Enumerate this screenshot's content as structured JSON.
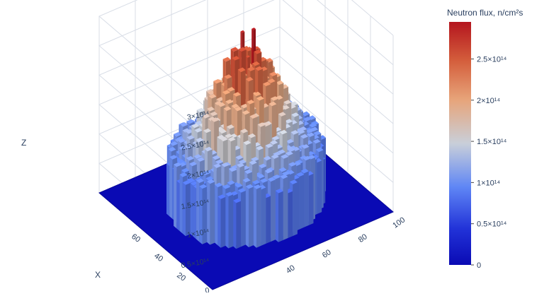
{
  "chart_data": {
    "type": "surface",
    "colorbar": {
      "title": "Neutron flux, n/cm²s",
      "tick_labels": [
        "0",
        "0.5×10¹⁴",
        "1×10¹⁴",
        "1.5×10¹⁴",
        "2×10¹⁴",
        "2.5×10¹⁴"
      ],
      "tick_values": [
        0,
        50000000000000.0,
        100000000000000.0,
        150000000000000.0,
        200000000000000.0,
        250000000000000.0
      ],
      "range": [
        0,
        295000000000000.0
      ],
      "colorscale": [
        [
          0.0,
          "#0a0ab4"
        ],
        [
          0.15,
          "#2233d8"
        ],
        [
          0.32,
          "#5f86f5"
        ],
        [
          0.5,
          "#c9cfd9"
        ],
        [
          0.68,
          "#e7a47a"
        ],
        [
          0.84,
          "#d45e3c"
        ],
        [
          1.0,
          "#b4151e"
        ]
      ]
    },
    "z_axis": {
      "title": "Z",
      "tick_labels": [
        "0",
        "0.5×10¹⁴",
        "1×10¹⁴",
        "1.5×10¹⁴",
        "2×10¹⁴",
        "2.5×10¹⁴",
        "3×10¹⁴"
      ],
      "tick_values": [
        0,
        50000000000000.0,
        100000000000000.0,
        150000000000000.0,
        200000000000000.0,
        250000000000000.0,
        300000000000000.0
      ],
      "range": [
        0,
        300000000000000.0
      ]
    },
    "x_axis": {
      "title": "X",
      "tick_labels": [
        "0",
        "20",
        "40",
        "60"
      ],
      "tick_values": [
        0,
        20,
        40,
        60
      ],
      "range": [
        0,
        100
      ]
    },
    "y_axis": {
      "title": "",
      "tick_labels": [
        "40",
        "60",
        "80",
        "100"
      ],
      "tick_values": [
        40,
        60,
        80,
        100
      ],
      "range": [
        0,
        100
      ]
    },
    "core_region": {
      "center": [
        50,
        50
      ],
      "radius": 36
    },
    "peak_value": 295000000000000.0,
    "base_value": 0
  }
}
